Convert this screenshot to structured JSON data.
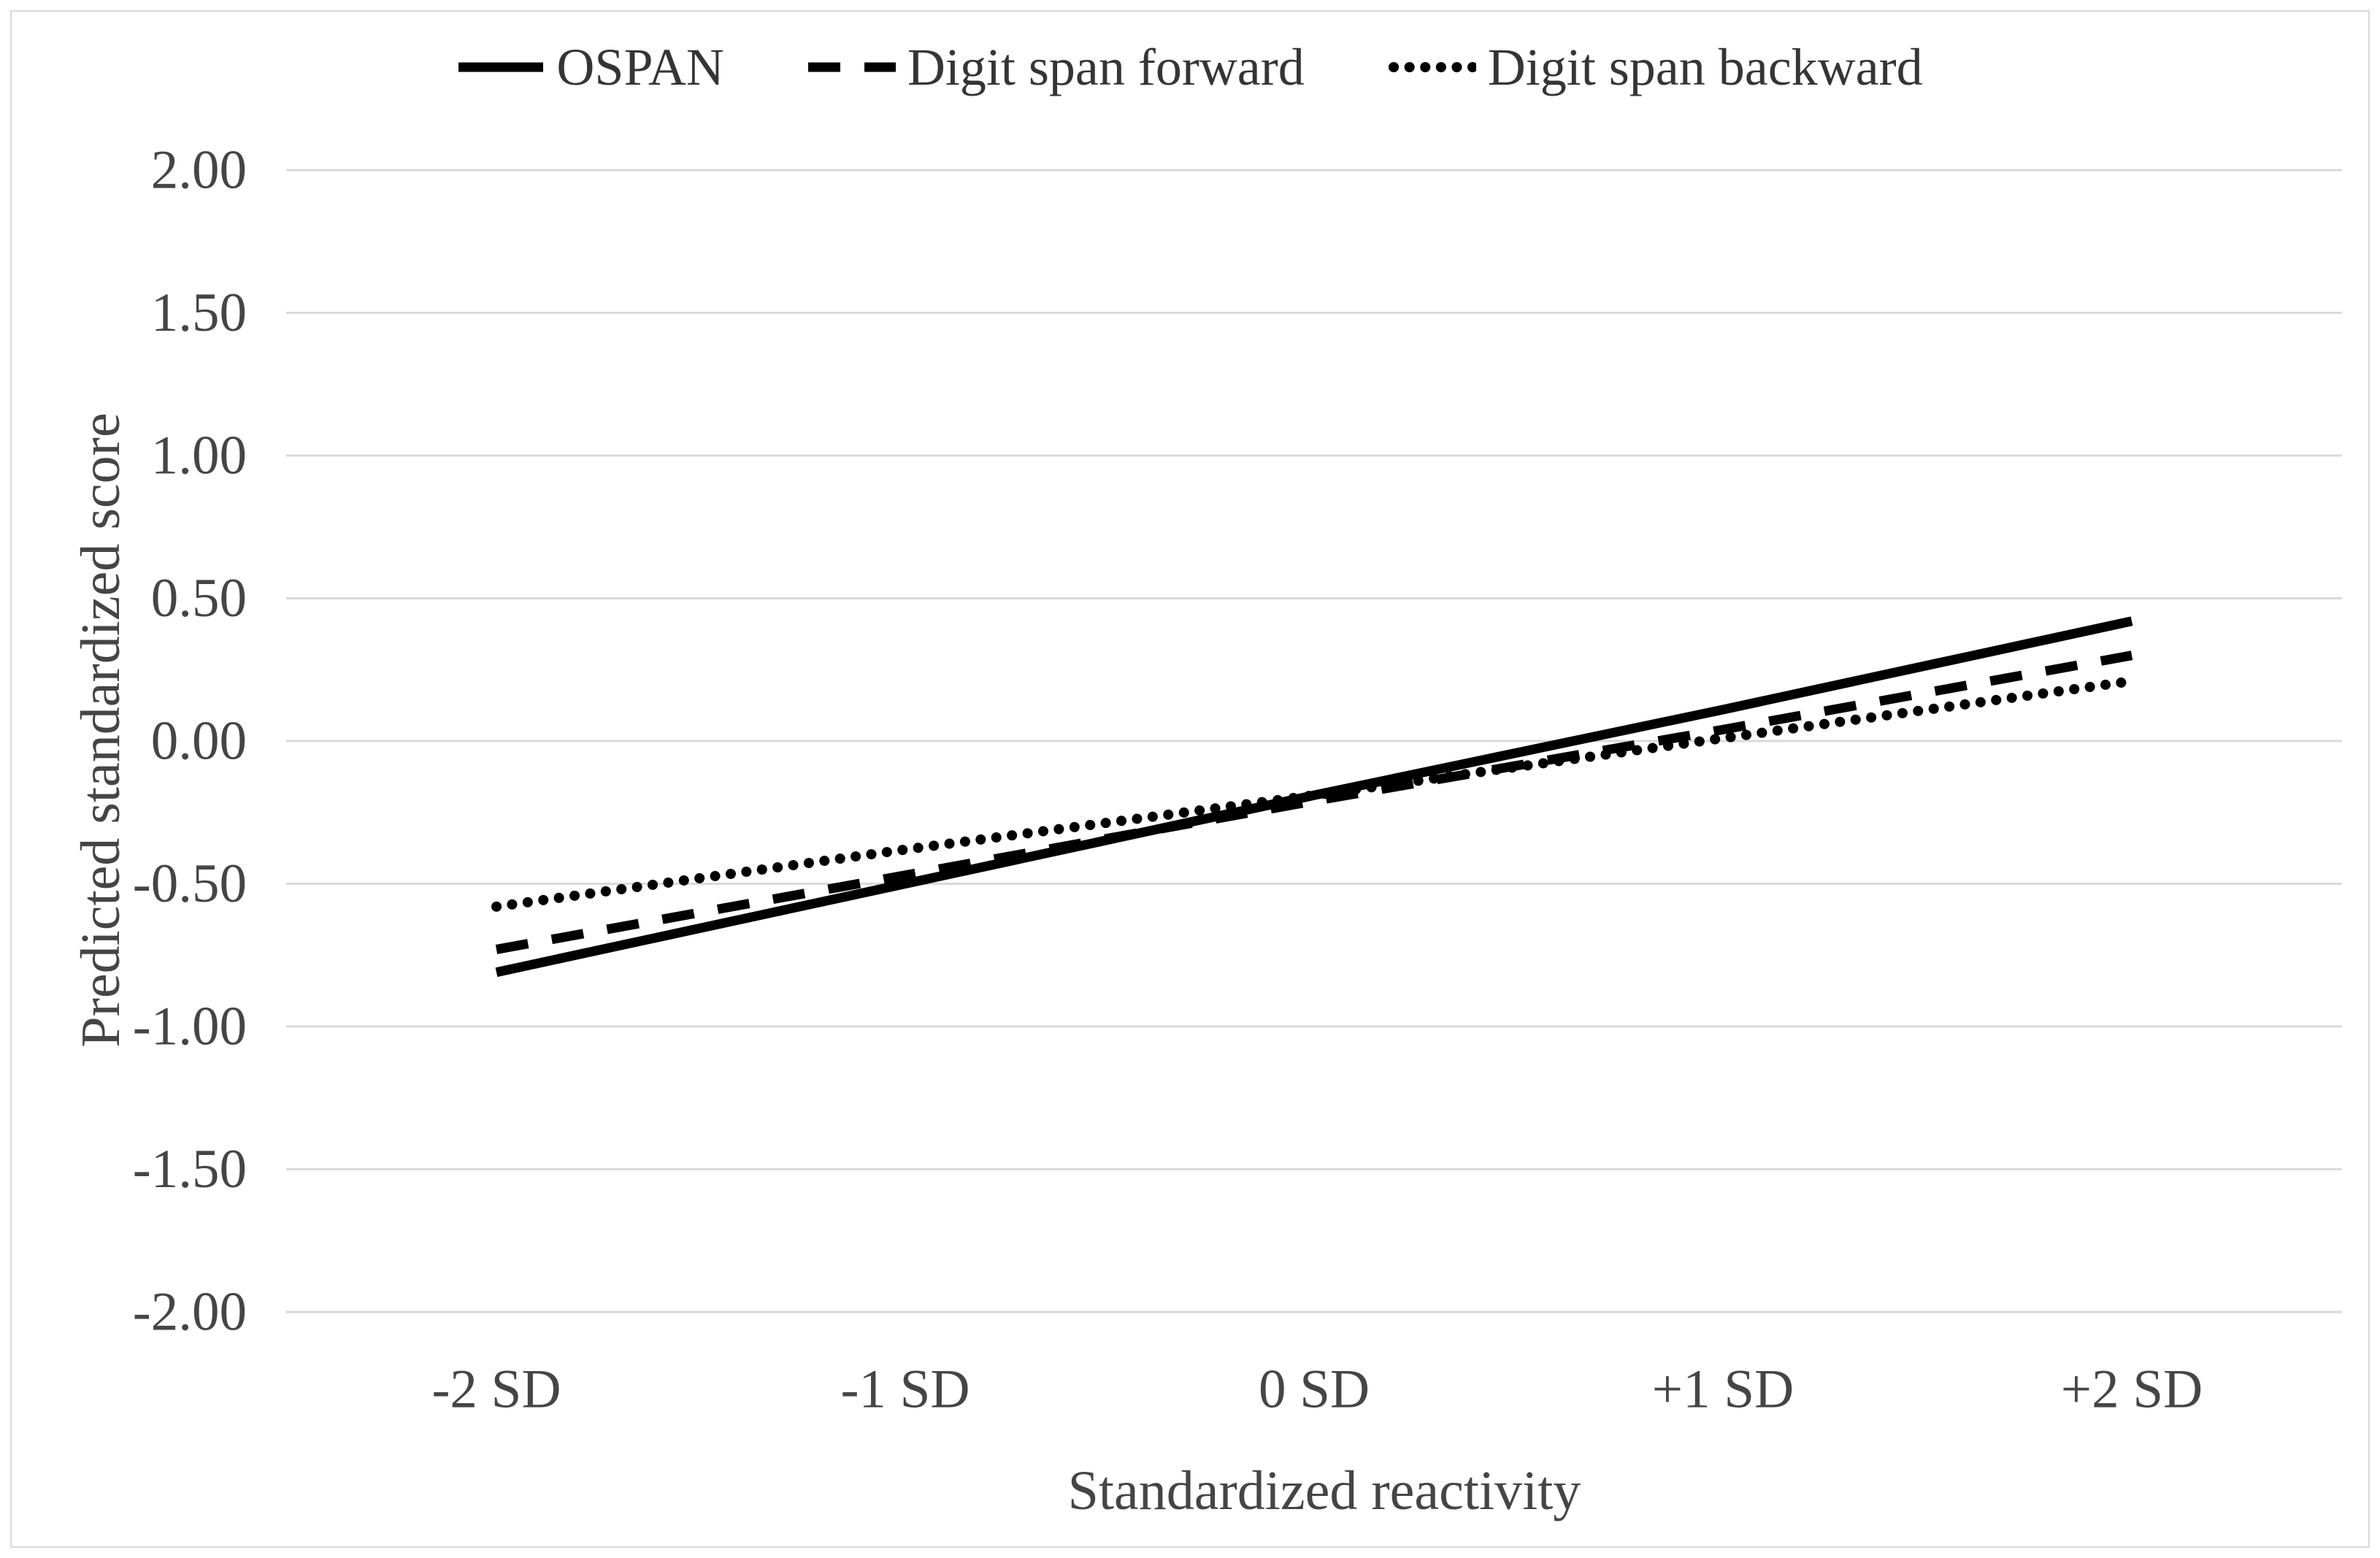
{
  "figure": {
    "background_color": "#ffffff",
    "border_color": "#d9d9d9",
    "line_color": "#000000",
    "grid_color": "#d9d9d9",
    "text_color": "#454545"
  },
  "legend": {
    "position": "top",
    "entries": [
      {
        "label": "OSPAN",
        "style": "solid"
      },
      {
        "label": "Digit span forward",
        "style": "dashed"
      },
      {
        "label": "Digit span backward",
        "style": "dotted"
      }
    ]
  },
  "chart_data": {
    "type": "line",
    "title": "",
    "xlabel": "Standardized reactivity",
    "ylabel": "Predicted standardized score",
    "categories": [
      "-2 SD",
      "-1 SD",
      "0 SD",
      "+1 SD",
      "+2 SD"
    ],
    "series": [
      {
        "name": "OSPAN",
        "style": "solid",
        "values": [
          -0.81,
          -0.5,
          -0.19,
          0.11,
          0.42
        ]
      },
      {
        "name": "Digit span forward",
        "style": "dashed",
        "values": [
          -0.73,
          -0.47,
          -0.21,
          0.04,
          0.3
        ]
      },
      {
        "name": "Digit span backward",
        "style": "dotted",
        "values": [
          -0.58,
          -0.38,
          -0.19,
          0.01,
          0.21
        ]
      }
    ],
    "ylim": [
      -2.0,
      2.0
    ],
    "yticks": [
      2.0,
      1.5,
      1.0,
      0.5,
      0.0,
      -0.5,
      -1.0,
      -1.5,
      -2.0
    ],
    "ytick_format": "2dp",
    "grid": "horizontal",
    "legend_position": "top"
  }
}
